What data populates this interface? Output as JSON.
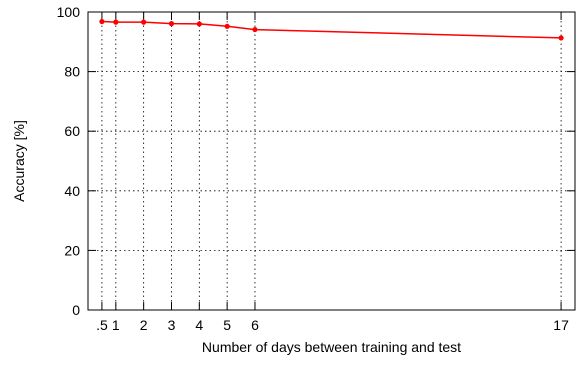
{
  "chart_data": {
    "type": "line",
    "xlabel": "Number of days between training and test",
    "ylabel": "Accuracy [%]",
    "xlim": [
      0,
      17.5
    ],
    "ylim": [
      0,
      100
    ],
    "grid": true,
    "x_tick_values": [
      0.5,
      1,
      2,
      3,
      4,
      5,
      6,
      17
    ],
    "x_tick_labels": [
      ".5",
      "1",
      "2",
      "3",
      "4",
      "5",
      "6",
      "17"
    ],
    "y_tick_values": [
      0,
      20,
      40,
      60,
      80,
      100
    ],
    "y_tick_labels": [
      "0",
      "20",
      "40",
      "60",
      "80",
      "100"
    ],
    "series": [
      {
        "color": "#ff0000",
        "x": [
          0.5,
          1,
          2,
          3,
          4,
          5,
          6,
          17
        ],
        "values": [
          96.8,
          96.6,
          96.6,
          96.1,
          96.0,
          95.2,
          94.1,
          91.3
        ]
      }
    ]
  }
}
